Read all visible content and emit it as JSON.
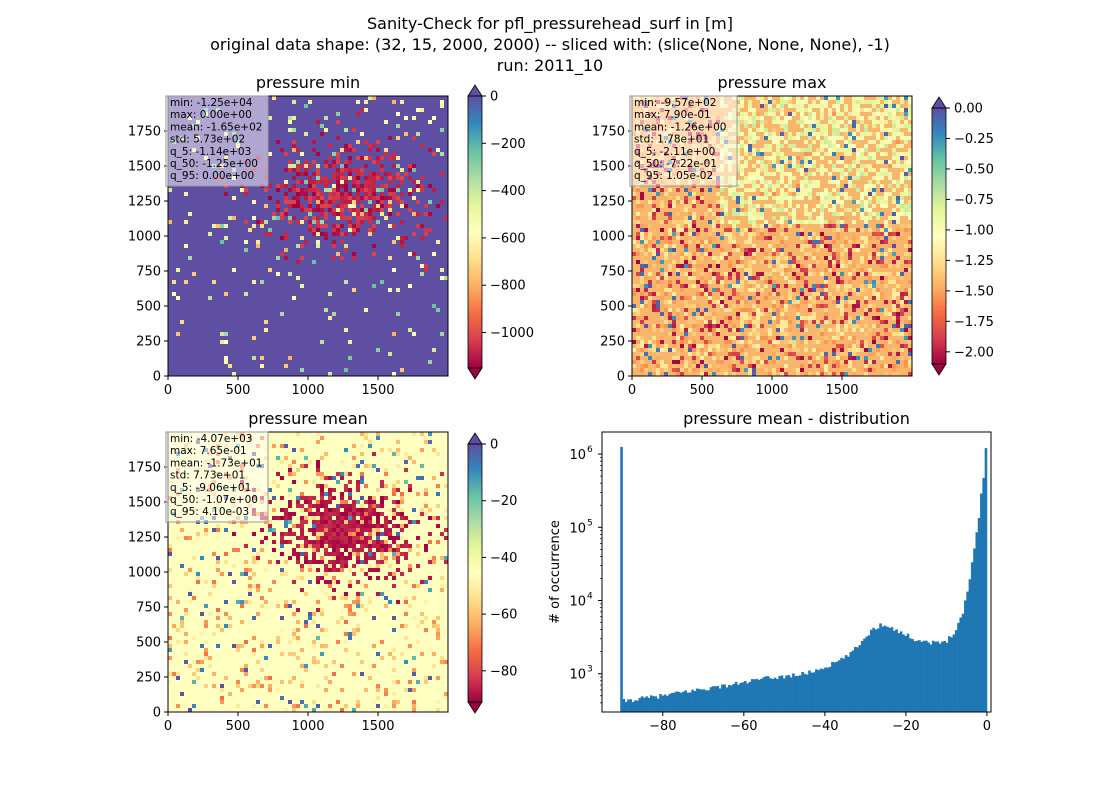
{
  "figure": {
    "title_lines": [
      "Sanity-Check for pfl_pressurehead_surf in [m]",
      "original data shape: (32, 15, 2000, 2000) -- sliced with: (slice(None, None, None), -1)",
      "run: 2011_10"
    ]
  },
  "colormap": [
    "#9e0142",
    "#d53e4f",
    "#f46d43",
    "#fdae61",
    "#fee08b",
    "#ffffbf",
    "#e6f598",
    "#abdda4",
    "#66c2a5",
    "#3288bd",
    "#5e4fa2"
  ],
  "chart_data": [
    {
      "type": "heatmap",
      "title": "pressure min",
      "xlim": [
        0,
        2000
      ],
      "ylim": [
        0,
        2000
      ],
      "xticks": [
        0,
        500,
        1000,
        1500
      ],
      "yticks": [
        0,
        250,
        500,
        750,
        1000,
        1250,
        1500,
        1750
      ],
      "colorbar": {
        "vmin": -1150,
        "vmax": 0,
        "extend": "both",
        "ticks": [
          0,
          -200,
          -400,
          -600,
          -800,
          -1000
        ],
        "tick_labels": [
          "0",
          "−200",
          "−400",
          "−600",
          "−800",
          "−1000"
        ]
      },
      "stats": [
        "min: -1.25e+04",
        "max: 0.00e+00",
        "mean: -1.65e+02",
        "std: 5.73e+02",
        "q_5: -1.14e+03",
        "q_50: -1.25e+00",
        "q_95: 0.00e+00"
      ]
    },
    {
      "type": "heatmap",
      "title": "pressure max",
      "xlim": [
        0,
        2000
      ],
      "ylim": [
        0,
        2000
      ],
      "xticks": [
        0,
        500,
        1000,
        1500
      ],
      "yticks": [
        0,
        250,
        500,
        750,
        1000,
        1250,
        1500,
        1750
      ],
      "colorbar": {
        "vmin": -2.1,
        "vmax": 0.0,
        "extend": "both",
        "ticks": [
          0.0,
          -0.25,
          -0.5,
          -0.75,
          -1.0,
          -1.25,
          -1.5,
          -1.75,
          -2.0
        ],
        "tick_labels": [
          "0.00",
          "−0.25",
          "−0.50",
          "−0.75",
          "−1.00",
          "−1.25",
          "−1.50",
          "−1.75",
          "−2.00"
        ]
      },
      "stats": [
        "min: -9.57e+02",
        "max: 7.90e-01",
        "mean: -1.26e+00",
        "std: 1.78e+01",
        "q_5: -2.11e+00",
        "q_50: -7.22e-01",
        "q_95: 1.05e-02"
      ]
    },
    {
      "type": "heatmap",
      "title": "pressure mean",
      "xlim": [
        0,
        2000
      ],
      "ylim": [
        0,
        2000
      ],
      "xticks": [
        0,
        500,
        1000,
        1500
      ],
      "yticks": [
        0,
        250,
        500,
        750,
        1000,
        1250,
        1500,
        1750
      ],
      "colorbar": {
        "vmin": -91,
        "vmax": 0,
        "extend": "both",
        "ticks": [
          0,
          -20,
          -40,
          -60,
          -80
        ],
        "tick_labels": [
          "0",
          "−20",
          "−40",
          "−60",
          "−80"
        ]
      },
      "stats": [
        "min: -4.07e+03",
        "max: 7.65e-01",
        "mean: -1.73e+01",
        "std: 7.73e+01",
        "q_5: -9.06e+01",
        "q_50: -1.07e+00",
        "q_95: 4.10e-03"
      ]
    },
    {
      "type": "bar",
      "subtype": "histogram",
      "title": "pressure mean - distribution",
      "xlabel": "",
      "ylabel": "# of occurrence",
      "yscale": "log",
      "color": "#1f77b4",
      "xlim": [
        -95,
        1
      ],
      "ylim": [
        300,
        2000000
      ],
      "xticks": [
        -80,
        -60,
        -40,
        -20,
        0
      ],
      "xtick_labels": [
        "−80",
        "−60",
        "−40",
        "−20",
        "0"
      ],
      "yticks": [
        1000,
        10000,
        100000,
        1000000
      ],
      "ytick_labels": [
        [
          "10",
          "3"
        ],
        [
          "10",
          "4"
        ],
        [
          "10",
          "5"
        ],
        [
          "10",
          "6"
        ]
      ],
      "bins_x": [
        -90,
        -85,
        -80,
        -75,
        -70,
        -65,
        -60,
        -55,
        -50,
        -45,
        -40,
        -35,
        -32,
        -30,
        -28,
        -26,
        -24,
        -22,
        -20,
        -18,
        -16,
        -14,
        -12,
        -10,
        -8,
        -6,
        -5,
        -4,
        -3,
        -2,
        -1.5,
        -1,
        -0.6,
        -0.3,
        0
      ],
      "bins_y": [
        420,
        460,
        500,
        560,
        620,
        680,
        760,
        860,
        920,
        1000,
        1220,
        1650,
        2300,
        3200,
        4100,
        4700,
        4500,
        3800,
        3400,
        3000,
        2800,
        2700,
        2600,
        2800,
        3800,
        6500,
        12000,
        24000,
        60000,
        130000,
        260000,
        420000,
        560000,
        1300000,
        1200000
      ]
    }
  ]
}
